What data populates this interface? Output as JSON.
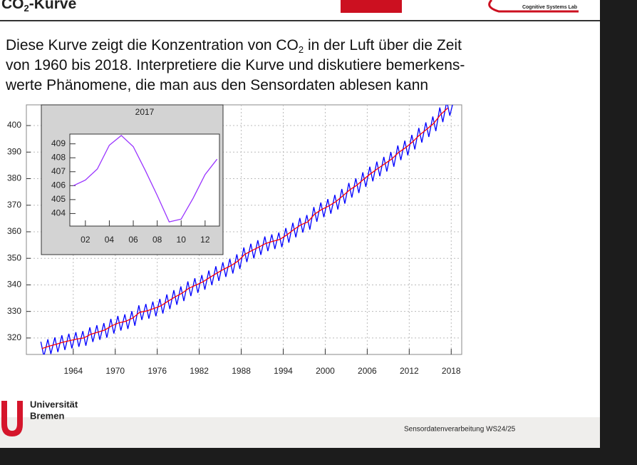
{
  "header": {
    "title": [
      "CO",
      "2",
      "-Kurve"
    ],
    "logo_text": "Cognitive Systems Lab"
  },
  "text": {
    "lines": [
      [
        "Diese Kurve zeigt die Konzentration von CO",
        "2",
        " in der Luft über die Zeit"
      ],
      [
        "von 1960 bis 2018. Interpretiere die Kurve und diskutiere bemerkens-"
      ],
      [
        "werte Phänomene, die man aus den Sensordaten ablesen kann"
      ]
    ]
  },
  "chart_data": {
    "type": "line",
    "xlim": [
      1957.3,
      2019.5
    ],
    "ylim": [
      313.8,
      407.8
    ],
    "xticks": [
      1964,
      1970,
      1976,
      1982,
      1988,
      1994,
      2000,
      2006,
      2012,
      2018
    ],
    "yticks": [
      320,
      330,
      340,
      350,
      360,
      370,
      380,
      390,
      400
    ],
    "grid": true,
    "series": [
      {
        "color": "#0000ff",
        "x": [
          1959.37,
          1959.8,
          1960.37,
          1960.8,
          1961.37,
          1961.8,
          1962.37,
          1962.8,
          1963.37,
          1963.8,
          1964.37,
          1964.8,
          1965.37,
          1965.8,
          1966.37,
          1966.8,
          1967.37,
          1967.8,
          1968.37,
          1968.8,
          1969.37,
          1969.8,
          1970.37,
          1970.8,
          1971.37,
          1971.8,
          1972.37,
          1972.8,
          1973.37,
          1973.8,
          1974.37,
          1974.8,
          1975.37,
          1975.8,
          1976.37,
          1976.8,
          1977.37,
          1977.8,
          1978.37,
          1978.8,
          1979.37,
          1979.8,
          1980.37,
          1980.8,
          1981.37,
          1981.8,
          1982.37,
          1982.8,
          1983.37,
          1983.8,
          1984.37,
          1984.8,
          1985.37,
          1985.8,
          1986.37,
          1986.8,
          1987.37,
          1987.8,
          1988.37,
          1988.8,
          1989.37,
          1989.8,
          1990.37,
          1990.8,
          1991.37,
          1991.8,
          1992.37,
          1992.8,
          1993.37,
          1993.8,
          1994.37,
          1994.8,
          1995.37,
          1995.8,
          1996.37,
          1996.8,
          1997.37,
          1997.8,
          1998.37,
          1998.8,
          1999.37,
          1999.8,
          2000.37,
          2000.8,
          2001.37,
          2001.8,
          2002.37,
          2002.8,
          2003.37,
          2003.8,
          2004.37,
          2004.8,
          2005.37,
          2005.8,
          2006.37,
          2006.8,
          2007.37,
          2007.8,
          2008.37,
          2008.8,
          2009.37,
          2009.8,
          2010.37,
          2010.8,
          2011.37,
          2011.8,
          2012.37,
          2012.8,
          2013.37,
          2013.8,
          2014.37,
          2014.8,
          2015.37,
          2015.8,
          2016.37,
          2016.8,
          2017.37,
          2017.8,
          2018.2
        ],
        "values": [
          318.6,
          313.1,
          319.5,
          314.0,
          320.2,
          314.7,
          321.0,
          315.5,
          321.6,
          316.1,
          322.2,
          316.7,
          322.6,
          317.1,
          324.0,
          318.5,
          324.8,
          319.3,
          325.6,
          320.1,
          327.2,
          321.7,
          328.3,
          322.8,
          328.9,
          323.4,
          330.1,
          324.6,
          332.3,
          326.8,
          332.8,
          327.3,
          333.7,
          328.2,
          334.7,
          329.2,
          336.4,
          330.9,
          338.0,
          332.5,
          339.4,
          333.9,
          341.3,
          335.8,
          342.5,
          337.0,
          343.7,
          338.2,
          345.4,
          339.9,
          347.0,
          341.5,
          348.5,
          343.0,
          349.8,
          344.3,
          351.5,
          346.0,
          354.1,
          348.6,
          355.5,
          350.0,
          356.8,
          351.3,
          358.2,
          352.7,
          359.0,
          353.5,
          359.7,
          354.2,
          361.4,
          355.9,
          363.4,
          357.9,
          365.2,
          359.7,
          366.3,
          360.8,
          369.3,
          363.8,
          371.0,
          365.5,
          372.3,
          366.8,
          373.9,
          368.4,
          376.1,
          370.6,
          378.4,
          372.9,
          380.1,
          374.6,
          382.4,
          376.9,
          384.5,
          379.0,
          386.4,
          380.9,
          388.2,
          382.7,
          390.0,
          384.5,
          392.5,
          387.0,
          394.3,
          388.8,
          396.5,
          391.0,
          399.1,
          393.6,
          401.2,
          395.7,
          403.4,
          397.9,
          406.8,
          401.3,
          409.2,
          403.7,
          408.0
        ]
      },
      {
        "color": "#ff0000",
        "x": [
          1959.5,
          1960.5,
          1961.5,
          1962.5,
          1963.5,
          1964.5,
          1965.5,
          1966.5,
          1967.5,
          1968.5,
          1969.5,
          1970.5,
          1971.5,
          1972.5,
          1973.5,
          1974.5,
          1975.5,
          1976.5,
          1977.5,
          1978.5,
          1979.5,
          1980.5,
          1981.5,
          1982.5,
          1983.5,
          1984.5,
          1985.5,
          1986.5,
          1987.5,
          1988.5,
          1989.5,
          1990.5,
          1991.5,
          1992.5,
          1993.5,
          1994.5,
          1995.5,
          1996.5,
          1997.5,
          1998.5,
          1999.5,
          2000.5,
          2001.5,
          2002.5,
          2003.5,
          2004.5,
          2005.5,
          2006.5,
          2007.5,
          2008.5,
          2009.5,
          2010.5,
          2011.5,
          2012.5,
          2013.5,
          2014.5,
          2015.5,
          2016.5,
          2017.5
        ],
        "values": [
          316.0,
          316.9,
          317.6,
          318.4,
          319.0,
          319.6,
          320.0,
          321.4,
          322.2,
          323.0,
          324.6,
          325.7,
          326.3,
          327.5,
          329.7,
          330.2,
          331.1,
          332.1,
          333.8,
          335.4,
          336.8,
          338.7,
          339.9,
          341.1,
          342.8,
          344.4,
          345.9,
          347.2,
          348.9,
          351.5,
          352.9,
          354.2,
          355.6,
          356.4,
          357.1,
          358.8,
          360.8,
          362.6,
          363.7,
          366.7,
          368.4,
          369.7,
          371.3,
          373.5,
          375.8,
          377.5,
          379.8,
          381.9,
          383.8,
          385.6,
          387.4,
          389.9,
          391.7,
          393.9,
          396.5,
          398.6,
          400.8,
          404.2,
          406.6
        ]
      }
    ],
    "inset": {
      "type": "line",
      "title": "2017",
      "color": "#9933ff",
      "xlim": [
        0.7,
        13.2
      ],
      "ylim": [
        403.1,
        409.7
      ],
      "xticks": [
        {
          "value": 2,
          "label": "02"
        },
        {
          "value": 4,
          "label": "04"
        },
        {
          "value": 6,
          "label": "06"
        },
        {
          "value": 8,
          "label": "08"
        },
        10,
        12
      ],
      "yticks": [
        404,
        405,
        406,
        407,
        408,
        409
      ],
      "x": [
        1,
        2,
        3,
        4,
        5,
        6,
        7,
        8,
        9,
        10,
        11,
        12,
        13
      ],
      "values": [
        406.0,
        406.4,
        407.2,
        408.9,
        409.6,
        408.8,
        407.1,
        405.3,
        403.4,
        403.6,
        405.1,
        406.8,
        407.9
      ]
    }
  },
  "footer": {
    "university": [
      "Universität",
      "Bremen"
    ],
    "course": "Sensordatenverarbeitung WS24/25"
  }
}
